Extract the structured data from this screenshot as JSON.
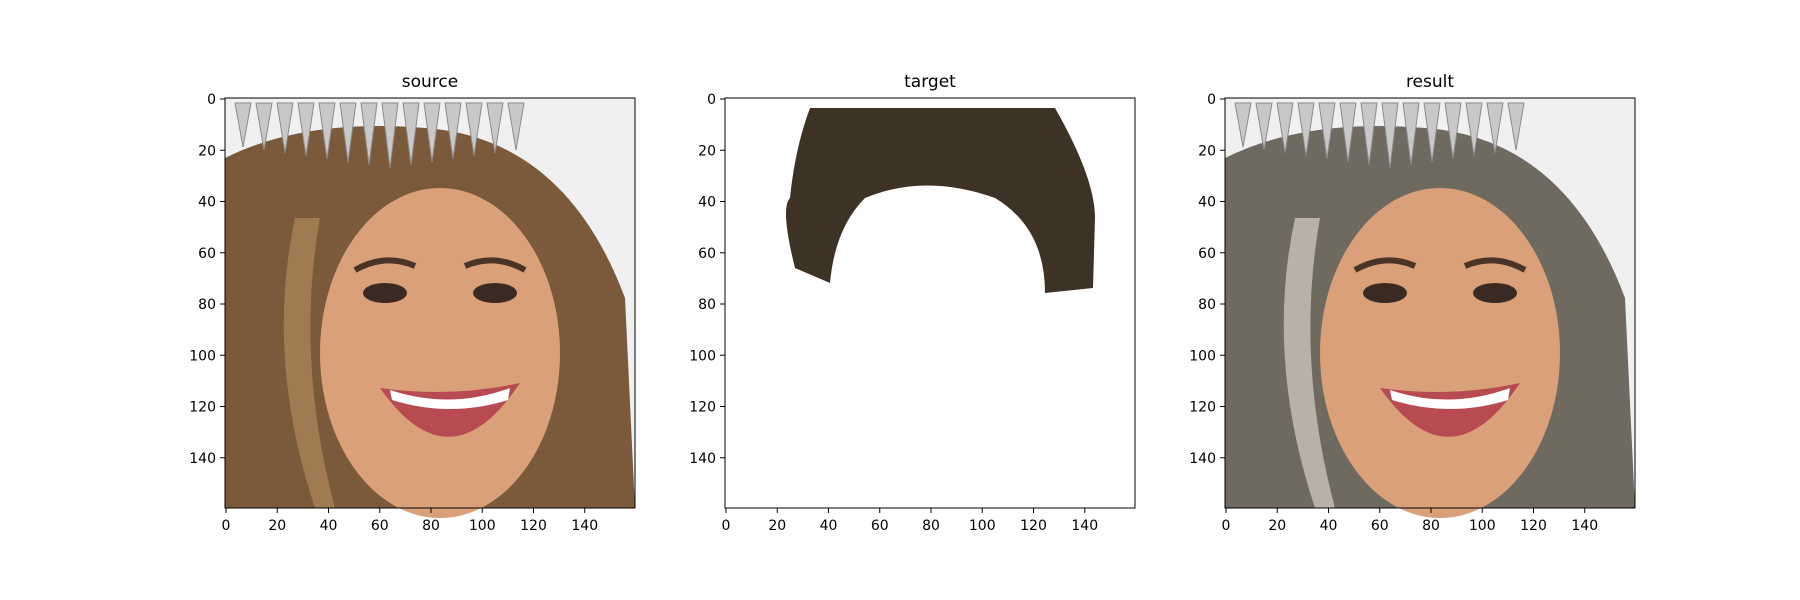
{
  "figure": {
    "panels": [
      {
        "title": "source",
        "kind": "face"
      },
      {
        "title": "target",
        "kind": "hair-mask"
      },
      {
        "title": "result",
        "kind": "face-recolored"
      }
    ],
    "xticks": [
      "0",
      "20",
      "40",
      "60",
      "80",
      "100",
      "120",
      "140"
    ],
    "yticks": [
      "0",
      "20",
      "40",
      "60",
      "80",
      "100",
      "120",
      "140"
    ],
    "axis_range": [
      0,
      160
    ]
  },
  "colors": {
    "source_hair": "#7a5a3a",
    "source_hair_light": "#a07a50",
    "target_hair": "#3e3226",
    "result_hair": "#6f6a60",
    "skin": "#d9a07a",
    "background": "#f0f0f0"
  }
}
